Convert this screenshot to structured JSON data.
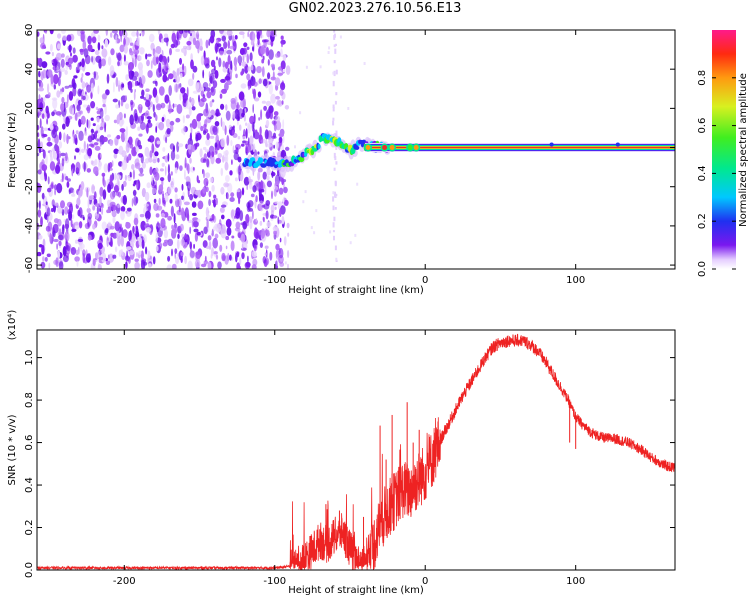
{
  "page": {
    "title": "GN02.2023.276.10.56.E13"
  },
  "colors": {
    "snr_line": "#ee2222",
    "spectrogram_noise": "#7a18ef",
    "spectrogram_signal_core": "#e8302a",
    "background": "#ffffff",
    "axis": "#000000"
  },
  "chart_data": [
    {
      "type": "heatmap",
      "title": "GN02.2023.276.10.56.E13",
      "xlabel": "Height of straight line (km)",
      "ylabel": "Frequency (Hz)",
      "xlim": [
        -258,
        166
      ],
      "ylim": [
        -62,
        60
      ],
      "x_ticks": [
        "-200",
        "-100",
        "0",
        "100"
      ],
      "y_ticks": [
        "60",
        "40",
        "20",
        "0",
        "-20",
        "-40",
        "-60"
      ],
      "colorbar": {
        "label": "Normalized spectral amplitude",
        "range": [
          0.0,
          1.0
        ],
        "ticks": [
          "0.0",
          "0.2",
          "0.4",
          "0.6",
          "0.8"
        ],
        "colormap": "rainbow"
      },
      "features": [
        {
          "label": "broadband noise",
          "x_range": [
            -258,
            -95
          ],
          "amplitude": 0.1
        },
        {
          "label": "signal onset",
          "x_range": [
            -120,
            -60
          ],
          "frequency_hz": -8,
          "amplitude": 0.35
        },
        {
          "label": "rising track",
          "x_range": [
            -90,
            -40
          ],
          "frequency_hz": 4,
          "amplitude": 0.5
        },
        {
          "label": "steady tone",
          "x_range": [
            -30,
            166
          ],
          "frequency_hz": 0,
          "amplitude": 0.95
        }
      ]
    },
    {
      "type": "line",
      "xlabel": "Height of straight line (km)",
      "ylabel": "SNR (10 * v/v)",
      "y_multiplier": "(x10⁴)",
      "xlim": [
        -258,
        166
      ],
      "ylim": [
        0,
        1.13
      ],
      "x_ticks": [
        "-200",
        "-100",
        "0",
        "100"
      ],
      "y_ticks": [
        "0.0",
        "0.2",
        "0.4",
        "0.6",
        "0.8",
        "1.0"
      ],
      "series": [
        {
          "x": [
            -258,
            -200,
            -150,
            -100,
            -85,
            -80,
            -75,
            -70,
            -65,
            -60,
            -55,
            -50,
            -45,
            -40,
            -35,
            -30,
            -25,
            -20,
            -15,
            -10,
            -5,
            0,
            5,
            10,
            15,
            20,
            25,
            30,
            35,
            40,
            45,
            50,
            55,
            60,
            65,
            70,
            75,
            80,
            85,
            90,
            95,
            100,
            105,
            110,
            115,
            120,
            125,
            130,
            135,
            140,
            145,
            150,
            155,
            160,
            166
          ],
          "y": [
            0.01,
            0.01,
            0.01,
            0.01,
            0.02,
            0.05,
            0.09,
            0.14,
            0.12,
            0.16,
            0.18,
            0.1,
            0.03,
            0.03,
            0.1,
            0.22,
            0.28,
            0.33,
            0.38,
            0.37,
            0.42,
            0.46,
            0.53,
            0.61,
            0.68,
            0.75,
            0.82,
            0.88,
            0.94,
            1.0,
            1.05,
            1.07,
            1.08,
            1.08,
            1.08,
            1.06,
            1.03,
            0.98,
            0.92,
            0.86,
            0.8,
            0.72,
            0.68,
            0.65,
            0.63,
            0.62,
            0.62,
            0.61,
            0.6,
            0.58,
            0.56,
            0.53,
            0.51,
            0.49,
            0.48
          ]
        }
      ],
      "spikes": [
        {
          "x": -66,
          "y": 0.31
        },
        {
          "x": -57,
          "y": 0.28
        },
        {
          "x": -41,
          "y": 0.25
        },
        {
          "x": -30,
          "y": 0.68
        },
        {
          "x": -26,
          "y": 0.52
        },
        {
          "x": -22,
          "y": 0.73
        },
        {
          "x": -12,
          "y": 0.79
        },
        {
          "x": -8,
          "y": 0.6
        },
        {
          "x": -4,
          "y": 0.66
        },
        {
          "x": 96,
          "y": 0.6
        },
        {
          "x": 100,
          "y": 0.57
        }
      ]
    }
  ]
}
